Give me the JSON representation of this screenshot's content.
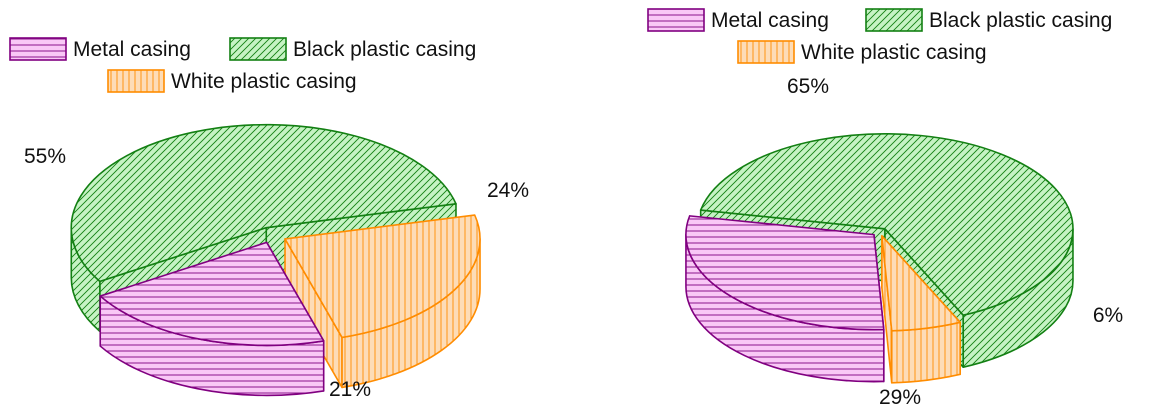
{
  "chart_data": [
    {
      "type": "pie",
      "style": "3d-exploded",
      "legend_placement": "top",
      "colors": {
        "Metal casing": "#f9c8f6",
        "Black plastic casing": "#c6f3c4",
        "White plastic casing": "#fddcb7"
      },
      "outline_colors": {
        "Metal casing": "#800080",
        "Black plastic casing": "#138013",
        "White plastic casing": "#ff8c00"
      },
      "legend": [
        "Metal casing",
        "Black plastic casing",
        "White plastic casing"
      ],
      "slices": [
        {
          "name": "Metal casing",
          "value": 21,
          "label": "21%"
        },
        {
          "name": "Black plastic casing",
          "value": 55,
          "label": "55%"
        },
        {
          "name": "White plastic casing",
          "value": 24,
          "label": "24%"
        }
      ]
    },
    {
      "type": "pie",
      "style": "3d-exploded",
      "legend_placement": "top",
      "colors": {
        "Metal casing": "#f9c8f6",
        "Black plastic casing": "#c6f3c4",
        "White plastic casing": "#fddcb7"
      },
      "outline_colors": {
        "Metal casing": "#800080",
        "Black plastic casing": "#138013",
        "White plastic casing": "#ff8c00"
      },
      "legend": [
        "Metal casing",
        "Black plastic casing",
        "White plastic casing"
      ],
      "slices": [
        {
          "name": "Metal casing",
          "value": 29,
          "label": "29%"
        },
        {
          "name": "Black plastic casing",
          "value": 65,
          "label": "65%"
        },
        {
          "name": "White plastic casing",
          "value": 6,
          "label": "6%"
        }
      ]
    }
  ]
}
